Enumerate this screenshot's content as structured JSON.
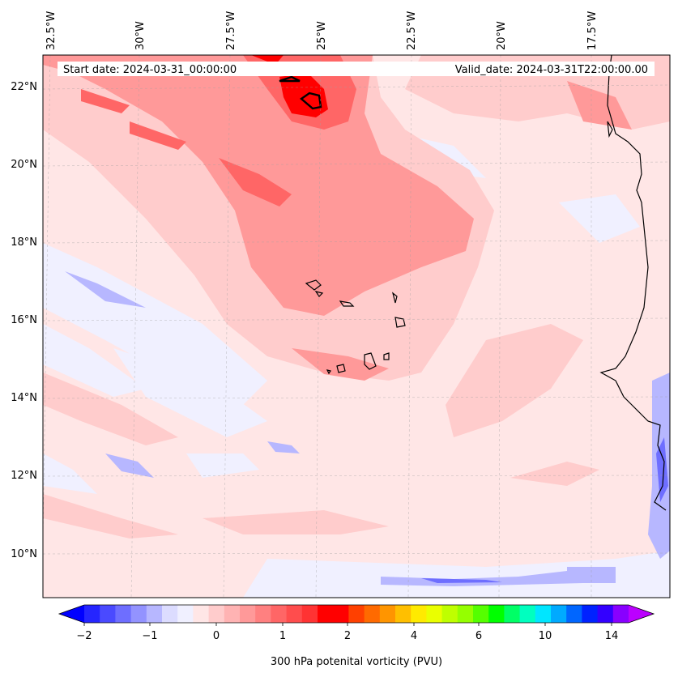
{
  "header": {
    "start_date": "Start date: 2024-03-31_00:00:00",
    "valid_date": "Valid_date: 2024-03-31T22:00:00.00"
  },
  "longitude_labels": [
    "32.5°W",
    "30°W",
    "27.5°W",
    "25°W",
    "22.5°W",
    "20°W",
    "17.5°W"
  ],
  "latitude_labels": [
    "22°N",
    "20°N",
    "18°N",
    "16°N",
    "14°N",
    "12°N",
    "10°N"
  ],
  "colorbar": {
    "label": "300 hPa potenital vorticity (PVU)",
    "tick_labels": [
      "−2",
      "−1",
      "0",
      "1",
      "2",
      "4",
      "6",
      "10",
      "14"
    ],
    "colors": [
      "#0000ff",
      "#2525ff",
      "#4a4aff",
      "#6e6eff",
      "#9393ff",
      "#b7b7ff",
      "#dcdcff",
      "#f0f0ff",
      "#ffe6e6",
      "#ffcccc",
      "#ffb3b3",
      "#ff9999",
      "#ff8080",
      "#ff6666",
      "#ff4d4d",
      "#ff3333",
      "#ff0000",
      "#ff0000",
      "#ff4000",
      "#ff6a00",
      "#ff9500",
      "#ffbf00",
      "#ffea00",
      "#eaff00",
      "#bfff00",
      "#95ff00",
      "#55ff00",
      "#00ff00",
      "#00ff66",
      "#00ffbf",
      "#00e6ff",
      "#00aaff",
      "#0066ff",
      "#0022ff",
      "#3300ff",
      "#8800ff",
      "#bb00ff"
    ]
  },
  "colors": {
    "pv_light_pink": "#ffe6e6",
    "pv_pink": "#ffcccc",
    "pv_salmon": "#ff9999",
    "pv_red": "#ff4d4d",
    "pv_deep_red": "#ff0000",
    "pv_light_blue": "#f0f0ff",
    "pv_blue": "#b7b7ff",
    "coastline": "#000000"
  }
}
